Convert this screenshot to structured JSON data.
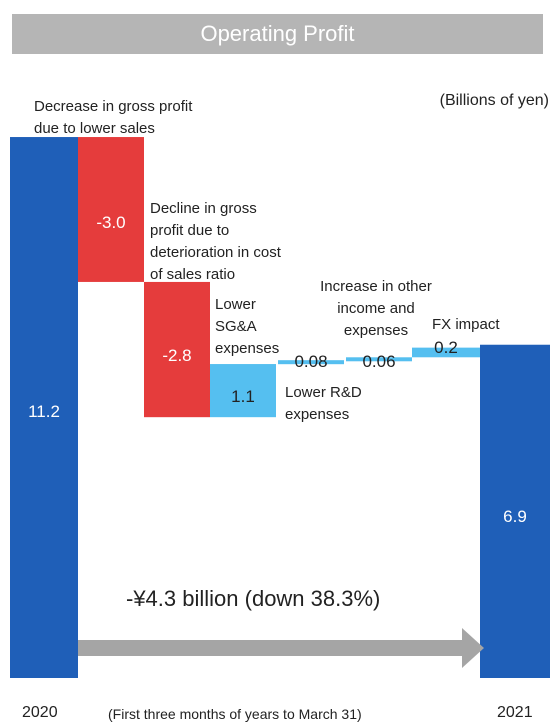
{
  "chart_data": {
    "type": "waterfall",
    "title": "Operating Profit",
    "unit_label": "(Billions of yen)",
    "start": {
      "category": "2020",
      "value": 11.2,
      "label": "11.2",
      "color": "#1f5fb8"
    },
    "end": {
      "category": "2021",
      "value": 6.9,
      "label": "6.9",
      "color": "#1f5fb8"
    },
    "steps": [
      {
        "label": "-3.0",
        "value": -3.0,
        "color": "#e53c3c",
        "description": [
          "Decrease in gross profit",
          "due to lower sales"
        ]
      },
      {
        "label": "-2.8",
        "value": -2.8,
        "color": "#e53c3c",
        "description": [
          "Decline in gross",
          "profit due to",
          "deterioration in cost",
          "of sales ratio"
        ]
      },
      {
        "label": "1.1",
        "value": 1.1,
        "color": "#55bff0",
        "description": [
          "Lower",
          "SG&A",
          "expenses"
        ]
      },
      {
        "label": "0.08",
        "value": 0.08,
        "color": "#55bff0",
        "description": [
          "Lower R&D",
          "expenses"
        ]
      },
      {
        "label": "0.06",
        "value": 0.06,
        "color": "#55bff0",
        "description": [
          "Increase in other",
          "income and",
          "expenses"
        ]
      },
      {
        "label": "0.2",
        "value": 0.2,
        "color": "#55bff0",
        "description": [
          "FX impact"
        ]
      }
    ],
    "summary": "-¥4.3 billion (down 38.3%)",
    "x_note": "(First three months of years to March 31)",
    "arrow_color": "#a5a5a5"
  }
}
